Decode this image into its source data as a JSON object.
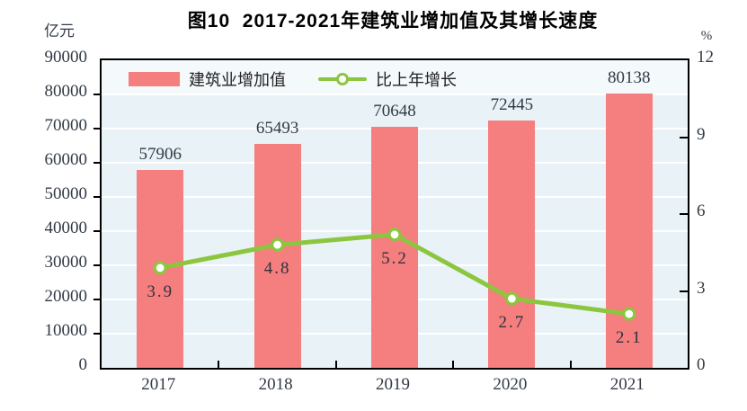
{
  "header": {
    "title": "图10  2017-2021年建筑业增加值及其增长速度",
    "left_unit": "亿元",
    "right_unit": "%"
  },
  "legend": {
    "items": [
      {
        "label": "建筑业增加值",
        "type": "bar"
      },
      {
        "label": "比上年增长",
        "type": "line"
      }
    ]
  },
  "chart_data": {
    "type": "bar",
    "title": "图10  2017-2021年建筑业增加值及其增长速度",
    "categories": [
      "2017",
      "2018",
      "2019",
      "2020",
      "2021"
    ],
    "series": [
      {
        "name": "建筑业增加值",
        "type": "bar",
        "axis": "left",
        "values": [
          57906,
          65493,
          70648,
          72445,
          80138
        ],
        "value_labels": [
          "57906",
          "65493",
          "70648",
          "72445",
          "80138"
        ],
        "color": "#f57e7e"
      },
      {
        "name": "比上年增长",
        "type": "line",
        "axis": "right",
        "values": [
          3.9,
          4.8,
          5.2,
          2.7,
          2.1
        ],
        "value_labels": [
          "3.9",
          "4.8",
          "5.2",
          "2.7",
          "2.1"
        ],
        "color": "#8cc63f",
        "marker": "circle-white-fill"
      }
    ],
    "left_axis": {
      "label": "亿元",
      "min": 0,
      "max": 90000,
      "step": 10000,
      "tick_labels": [
        "0",
        "10000",
        "20000",
        "30000",
        "40000",
        "50000",
        "60000",
        "70000",
        "80000",
        "90000"
      ]
    },
    "right_axis": {
      "label": "%",
      "min": 0,
      "max": 12,
      "step": 3,
      "tick_labels": [
        "0",
        "3",
        "6",
        "9",
        "12"
      ]
    },
    "grid": "horizontal-white",
    "plot_background": "#e9f2f7",
    "legend_position": "top-left-inside"
  }
}
